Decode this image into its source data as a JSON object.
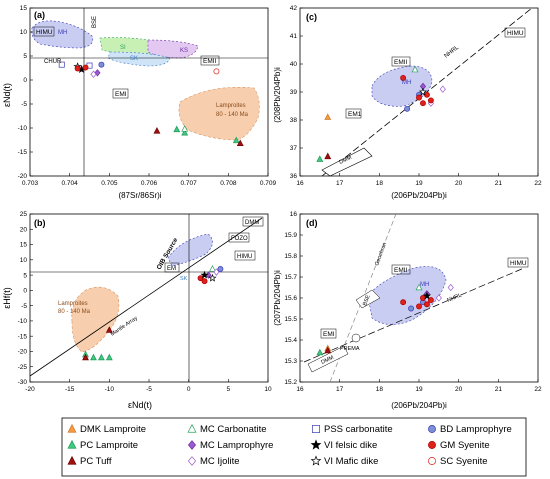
{
  "chart_data": [
    {
      "panel_label": "(a)",
      "type": "scatter",
      "xlabel": "(87Sr/86Sr)i",
      "ylabel": "εNd(t)",
      "xlim": [
        0.703,
        0.709
      ],
      "ylim": [
        -20,
        15
      ],
      "xticks": [
        0.703,
        0.704,
        0.705,
        0.706,
        0.707,
        0.708,
        0.709
      ],
      "yticks": [
        -20,
        -15,
        -10,
        -5,
        0,
        5,
        10,
        15
      ],
      "reference_lines": {
        "CHUR_epsilon": 0,
        "BSE_sr": 0.7045
      },
      "labels": [
        "HIMU",
        "MH",
        "BSE",
        "CHUR",
        "SI",
        "KS",
        "SK",
        "EMII",
        "EMI",
        "Lamproites",
        "80 - 140 Ma"
      ],
      "series": [
        {
          "name": "DMK Lamproite",
          "values": []
        },
        {
          "name": "PC Lamproite",
          "values": [
            [
              0.7067,
              -10.3
            ],
            [
              0.7069,
              -11.0
            ],
            [
              0.7082,
              -12.6
            ]
          ]
        },
        {
          "name": "PC Tuff",
          "values": [
            [
              0.7062,
              -10.6
            ],
            [
              0.7083,
              -13.2
            ]
          ]
        },
        {
          "name": "MC Carbonatite",
          "values": [
            [
              0.7069,
              -10.2
            ]
          ]
        },
        {
          "name": "MC Lamprophyre",
          "values": [
            [
              0.7047,
              1.5
            ]
          ]
        },
        {
          "name": "MC Ijolite",
          "values": [
            [
              0.7046,
              1.2
            ]
          ]
        },
        {
          "name": "PSS carbonatite",
          "values": [
            [
              0.7038,
              3.2
            ],
            [
              0.7045,
              3.0
            ]
          ]
        },
        {
          "name": "VI felsic dike",
          "values": [
            [
              0.7043,
              2.2
            ]
          ]
        },
        {
          "name": "VI Mafic dike",
          "values": [
            [
              0.7042,
              2.8
            ]
          ]
        },
        {
          "name": "BD Lamprophyre",
          "values": [
            [
              0.7048,
              3.2
            ]
          ]
        },
        {
          "name": "GM Syenite",
          "values": [
            [
              0.7042,
              2.4
            ],
            [
              0.7044,
              2.6
            ]
          ]
        },
        {
          "name": "SC Syenite",
          "values": [
            [
              0.7077,
              1.8
            ]
          ]
        }
      ]
    },
    {
      "panel_label": "(b)",
      "type": "scatter",
      "xlabel": "εNd(t)",
      "ylabel": "εHf(t)",
      "xlim": [
        -20,
        10
      ],
      "ylim": [
        -30,
        25
      ],
      "xticks": [
        -20,
        -15,
        -10,
        -5,
        0,
        5,
        10
      ],
      "yticks": [
        -30,
        -25,
        -20,
        -15,
        -10,
        -5,
        0,
        5,
        10,
        15,
        20,
        25
      ],
      "labels": [
        "OIB Source",
        "Mantle Array",
        "DMM",
        "FOZO",
        "HIMU",
        "EM",
        "SK",
        "Lamproites",
        "80 - 140 Ma"
      ],
      "series": [
        {
          "name": "PC Lamproite",
          "values": [
            [
              -13,
              -21
            ],
            [
              -12,
              -22
            ],
            [
              -11,
              -22
            ],
            [
              -10,
              -22
            ]
          ]
        },
        {
          "name": "PC Tuff",
          "values": [
            [
              -13,
              -22
            ],
            [
              -10,
              -13
            ]
          ]
        },
        {
          "name": "MC Carbonatite",
          "values": [
            [
              3,
              7
            ]
          ]
        },
        {
          "name": "MC Lamprophyre",
          "values": [
            [
              2.5,
              5
            ]
          ]
        },
        {
          "name": "MC Ijolite",
          "values": [
            [
              3.5,
              6
            ]
          ]
        },
        {
          "name": "BD Lamprophyre",
          "values": [
            [
              4,
              7
            ]
          ]
        },
        {
          "name": "GM Syenite",
          "values": [
            [
              1.5,
              4
            ],
            [
              2,
              3
            ]
          ]
        },
        {
          "name": "VI Mafic dike",
          "values": [
            [
              3,
              4
            ]
          ]
        },
        {
          "name": "VI felsic dike",
          "values": [
            [
              2,
              5
            ]
          ]
        }
      ]
    },
    {
      "panel_label": "(c)",
      "type": "scatter",
      "xlabel": "(206Pb/204Pb)i",
      "ylabel": "(208Pb/204Pb)i",
      "xlim": [
        16,
        22
      ],
      "ylim": [
        36,
        42
      ],
      "xticks": [
        16,
        17,
        18,
        19,
        20,
        21,
        22
      ],
      "yticks": [
        36,
        37,
        38,
        39,
        40,
        41,
        42
      ],
      "labels": [
        "EMII",
        "MH",
        "NHRL",
        "HIMU",
        "EM1",
        "DMM"
      ],
      "series": [
        {
          "name": "DMK Lamproite",
          "values": [
            [
              16.7,
              38.1
            ]
          ]
        },
        {
          "name": "PC Lamproite",
          "values": [
            [
              16.5,
              36.6
            ]
          ]
        },
        {
          "name": "PC Tuff",
          "values": [
            [
              16.7,
              36.7
            ]
          ]
        },
        {
          "name": "MC Carbonatite",
          "values": [
            [
              18.9,
              39.8
            ]
          ]
        },
        {
          "name": "MC Lamprophyre",
          "values": [
            [
              19.1,
              39.2
            ]
          ]
        },
        {
          "name": "MC Ijolite",
          "values": [
            [
              19.6,
              39.1
            ],
            [
              19.3,
              38.6
            ]
          ]
        },
        {
          "name": "BD Lamprophyre",
          "values": [
            [
              18.7,
              38.4
            ],
            [
              19.0,
              38.9
            ]
          ]
        },
        {
          "name": "GM Syenite",
          "values": [
            [
              18.6,
              39.5
            ],
            [
              19.0,
              38.8
            ],
            [
              19.1,
              38.6
            ],
            [
              19.2,
              38.9
            ],
            [
              19.3,
              38.7
            ]
          ]
        },
        {
          "name": "VI Mafic dike",
          "values": [
            [
              19.1,
              39.0
            ]
          ]
        }
      ]
    },
    {
      "panel_label": "(d)",
      "type": "scatter",
      "xlabel": "(206Pb/204Pb)i",
      "ylabel": "(207Pb/204Pb)i",
      "xlim": [
        16,
        22
      ],
      "ylim": [
        15.2,
        16.0
      ],
      "xticks": [
        16,
        17,
        18,
        19,
        20,
        21,
        22
      ],
      "yticks": [
        15.2,
        15.3,
        15.4,
        15.5,
        15.6,
        15.7,
        15.8,
        15.9,
        16.0
      ],
      "labels": [
        "Geochron",
        "BSE",
        "EMII",
        "MH",
        "NHRL",
        "HIMU",
        "EMI",
        "DMM",
        "PREMA"
      ],
      "series": [
        {
          "name": "DMK Lamproite",
          "values": [
            [
              16.7,
              15.36
            ]
          ]
        },
        {
          "name": "PC Lamproite",
          "values": [
            [
              16.5,
              15.34
            ]
          ]
        },
        {
          "name": "PC Tuff",
          "values": [
            [
              16.7,
              15.35
            ]
          ]
        },
        {
          "name": "MC Carbonatite",
          "values": [
            [
              19.0,
              15.65
            ]
          ]
        },
        {
          "name": "MC Lamprophyre",
          "values": [
            [
              19.2,
              15.62
            ]
          ]
        },
        {
          "name": "MC Ijolite",
          "values": [
            [
              19.8,
              15.65
            ],
            [
              19.5,
              15.6
            ]
          ]
        },
        {
          "name": "BD Lamprophyre",
          "values": [
            [
              18.8,
              15.55
            ],
            [
              19.1,
              15.58
            ]
          ]
        },
        {
          "name": "GM Syenite",
          "values": [
            [
              18.6,
              15.58
            ],
            [
              19.0,
              15.56
            ],
            [
              19.1,
              15.6
            ],
            [
              19.2,
              15.57
            ],
            [
              19.3,
              15.59
            ]
          ]
        },
        {
          "name": "VI felsic dike",
          "values": [
            [
              19.2,
              15.61
            ]
          ]
        }
      ]
    }
  ],
  "legend": [
    {
      "label": "DMK Lamproite",
      "marker": "triangle",
      "fill": "#f39c45",
      "stroke": "#d0782a"
    },
    {
      "label": "MC Carbonatite",
      "marker": "triangle",
      "fill": "#ffffff",
      "stroke": "#2ca25f"
    },
    {
      "label": "PSS carbonatite",
      "marker": "square",
      "fill": "#ffffff",
      "stroke": "#3b3bb5"
    },
    {
      "label": "BD Lamprophyre",
      "marker": "circle",
      "fill": "#7b8fd6",
      "stroke": "#3b3bb5"
    },
    {
      "label": "PC Lamproite",
      "marker": "triangle",
      "fill": "#41c77f",
      "stroke": "#1f9b5a"
    },
    {
      "label": "MC Lamprophyre",
      "marker": "diamond",
      "fill": "#9b59d0",
      "stroke": "#6b2fa0"
    },
    {
      "label": "VI felsic dike",
      "marker": "star",
      "fill": "#000000",
      "stroke": "#000000"
    },
    {
      "label": "GM Syenite",
      "marker": "circle",
      "fill": "#e0201a",
      "stroke": "#b00000"
    },
    {
      "label": "PC Tuff",
      "marker": "triangle",
      "fill": "#a01010",
      "stroke": "#700000"
    },
    {
      "label": "MC Ijolite",
      "marker": "diamond",
      "fill": "#ffffff",
      "stroke": "#9b59d0"
    },
    {
      "label": "VI Mafic dike",
      "marker": "star",
      "fill": "#ffffff",
      "stroke": "#000000"
    },
    {
      "label": "SC Syenite",
      "marker": "circle",
      "fill": "#ffffff",
      "stroke": "#e0201a"
    }
  ],
  "colors": {
    "lamproite_field": "#f7cfae",
    "mh_field": "#c9cdf2",
    "si_field": "#c9f0b4",
    "ks_field": "#e3c8f2",
    "sk_field": "#cfe5f7"
  }
}
